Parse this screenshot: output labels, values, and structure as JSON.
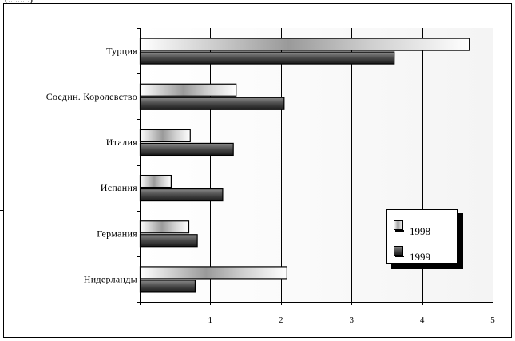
{
  "header_fragment": "(.........)",
  "chart_data": {
    "type": "bar",
    "orientation": "horizontal",
    "categories": [
      "Турция",
      "Соедин. Королевство",
      "Италия",
      "Испания",
      "Германия",
      "Нидерланды"
    ],
    "series": [
      {
        "name": "1998",
        "values": [
          4.67,
          1.36,
          0.71,
          0.44,
          0.69,
          2.08
        ],
        "color": "#ffffff",
        "style": "gradient-light"
      },
      {
        "name": "1999",
        "values": [
          3.6,
          2.04,
          1.32,
          1.17,
          0.81,
          0.78
        ],
        "color": "#4d4d4d",
        "style": "gradient-dark"
      }
    ],
    "x_ticks": [
      "1",
      "2",
      "3",
      "4",
      "5"
    ],
    "xlim": [
      0,
      5
    ],
    "grid": true,
    "legend_position": "right-bottom"
  }
}
